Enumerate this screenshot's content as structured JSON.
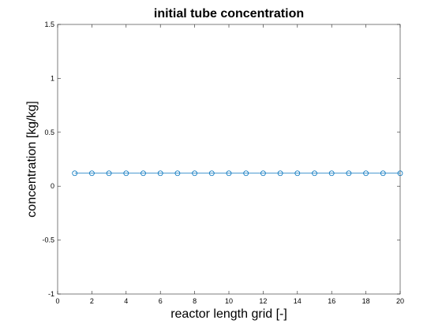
{
  "chart_data": {
    "type": "line",
    "title": "initial tube concentration",
    "xlabel": "reactor length grid [-]",
    "ylabel": "concentration [kg/kg]",
    "xlim": [
      0,
      20
    ],
    "ylim": [
      -1,
      1.5
    ],
    "xticks": [
      0,
      2,
      4,
      6,
      8,
      10,
      12,
      14,
      16,
      18,
      20
    ],
    "xtick_labels": [
      "0",
      "2",
      "4",
      "6",
      "8",
      "10",
      "12",
      "14",
      "16",
      "18",
      "20"
    ],
    "yticks": [
      -1,
      -0.5,
      0,
      0.5,
      1,
      1.5
    ],
    "ytick_labels": [
      "-1",
      "-0.5",
      "0",
      "0.5",
      "1",
      "1.5"
    ],
    "grid": false,
    "series": [
      {
        "color": "#0072BD",
        "marker": "circle",
        "x": [
          1,
          2,
          3,
          4,
          5,
          6,
          7,
          8,
          9,
          10,
          11,
          12,
          13,
          14,
          15,
          16,
          17,
          18,
          19,
          20
        ],
        "values": [
          0.12,
          0.12,
          0.12,
          0.12,
          0.12,
          0.12,
          0.12,
          0.12,
          0.12,
          0.12,
          0.12,
          0.12,
          0.12,
          0.12,
          0.12,
          0.12,
          0.12,
          0.12,
          0.12,
          0.12
        ]
      }
    ]
  }
}
